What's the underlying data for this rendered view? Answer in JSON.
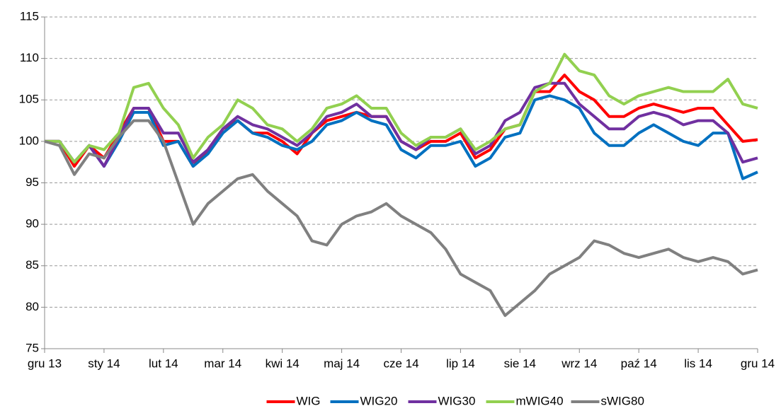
{
  "chart_data": {
    "type": "line",
    "categories": [
      "gru 13",
      null,
      null,
      null,
      "sty 14",
      null,
      null,
      null,
      "lut 14",
      null,
      null,
      null,
      "mar 14",
      null,
      null,
      null,
      "kwi 14",
      null,
      null,
      null,
      "maj 14",
      null,
      null,
      null,
      "cze 14",
      null,
      null,
      null,
      "lip 14",
      null,
      null,
      null,
      "sie 14",
      null,
      null,
      null,
      "wrz 14",
      null,
      null,
      null,
      "paź 14",
      null,
      null,
      null,
      "lis 14",
      null,
      null,
      null,
      "gru 14"
    ],
    "series": [
      {
        "name": "WIG",
        "color": "#ff0000",
        "values": [
          100,
          100,
          97,
          99.5,
          98,
          101,
          104,
          104,
          100,
          100,
          97,
          99,
          101.5,
          102.5,
          101,
          101,
          100,
          98.5,
          101,
          102.5,
          103,
          103.5,
          103,
          103,
          100,
          99,
          100,
          100,
          101,
          98,
          99,
          101.5,
          102,
          106,
          106,
          108,
          106,
          105,
          103,
          103,
          104,
          104.5,
          104,
          103.5,
          104,
          104,
          102,
          100,
          100.2
        ]
      },
      {
        "name": "WIG20",
        "color": "#0070c0",
        "values": [
          100,
          100,
          97.5,
          99.5,
          97,
          100,
          103.5,
          103.5,
          99.5,
          100,
          97,
          98.5,
          101,
          102.5,
          101,
          100.5,
          99.5,
          99,
          100,
          102,
          102.5,
          103.5,
          102.5,
          102,
          99,
          98,
          99.5,
          99.5,
          100,
          97,
          98,
          100.5,
          101,
          105,
          105.5,
          105,
          104,
          101,
          99.5,
          99.5,
          101,
          102,
          101,
          100,
          99.5,
          101,
          101,
          95.5,
          96.3
        ]
      },
      {
        "name": "WIG30",
        "color": "#7030a0",
        "values": [
          100,
          100,
          97.5,
          99.5,
          97,
          100.5,
          104,
          104,
          101,
          101,
          97.5,
          99,
          101.5,
          103,
          102,
          101.5,
          100.5,
          99.5,
          101,
          103,
          103.5,
          104.5,
          103,
          103,
          100,
          99,
          100.5,
          100.5,
          101.5,
          98.5,
          99.5,
          102.5,
          103.5,
          106.5,
          107,
          107,
          104.5,
          103,
          101.5,
          101.5,
          103,
          103.5,
          103,
          102,
          102.5,
          102.5,
          101,
          97.5,
          98
        ]
      },
      {
        "name": "mWIG40",
        "color": "#92d050",
        "values": [
          100,
          100,
          97.5,
          99.5,
          99,
          101,
          106.5,
          107,
          104,
          102,
          98,
          100.5,
          102,
          105,
          104,
          102,
          101.5,
          100,
          101.5,
          104,
          104.5,
          105.5,
          104,
          104,
          101,
          99.5,
          100.5,
          100.5,
          101.5,
          99,
          100,
          101.5,
          102,
          106,
          107,
          110.5,
          108.5,
          108,
          105.5,
          104.5,
          105.5,
          106,
          106.5,
          106,
          106,
          106,
          107.5,
          104.5,
          104
        ]
      },
      {
        "name": "sWIG80",
        "color": "#808080",
        "values": [
          100,
          99.5,
          96,
          98.5,
          98,
          100.5,
          102.5,
          102.5,
          100,
          95,
          90,
          92.5,
          94,
          95.5,
          96,
          94,
          92.5,
          91,
          88,
          87.5,
          90,
          91,
          91.5,
          92.5,
          91,
          90,
          89,
          87,
          84,
          83,
          82,
          79,
          80.5,
          82,
          84,
          85,
          86,
          88,
          87.5,
          86.5,
          86,
          86.5,
          87,
          86,
          85.5,
          86,
          85.5,
          84,
          84.5
        ]
      }
    ],
    "ylim": [
      75,
      115
    ],
    "yticks": [
      75,
      80,
      85,
      90,
      95,
      100,
      105,
      110,
      115
    ],
    "grid": true
  }
}
